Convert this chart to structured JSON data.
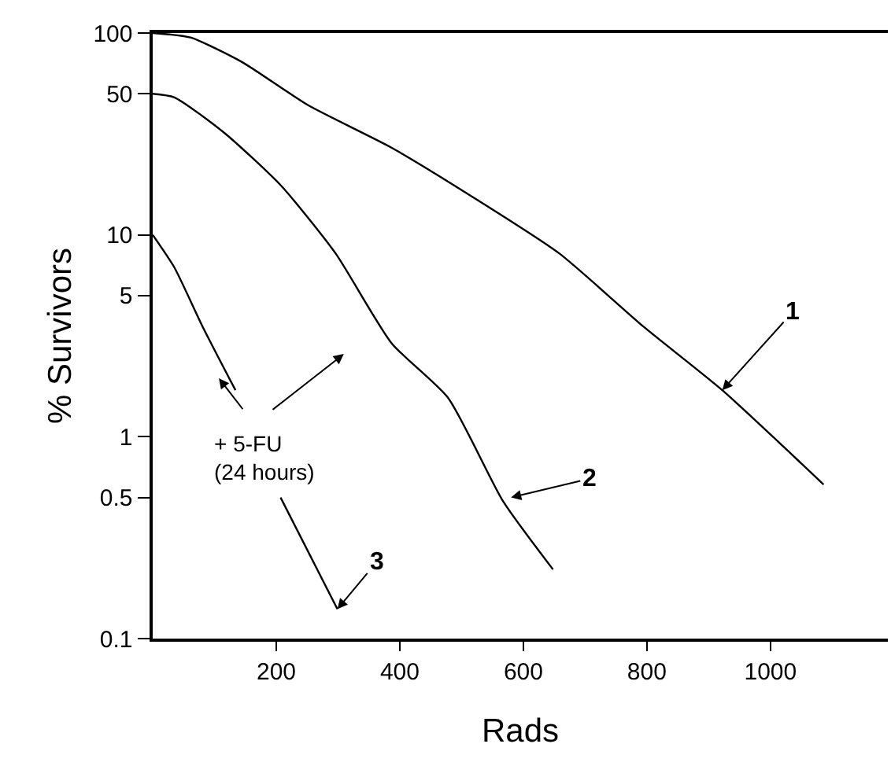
{
  "chart_data": {
    "type": "line",
    "xlabel": "Rads",
    "ylabel": "% Survivors",
    "log": "y",
    "marker": "none",
    "line_style": "solid",
    "xlim": [
      0,
      1190
    ],
    "xticks": [
      200,
      400,
      600,
      800,
      1000
    ],
    "ylim": [
      0.1,
      100
    ],
    "yticks": [
      0.1,
      0.5,
      1,
      5,
      10,
      50,
      100
    ],
    "series": [
      {
        "color": "#000000",
        "x": [
          0,
          61,
          144,
          251,
          387,
          524,
          658,
          795,
          922,
          1086
        ],
        "values": [
          100,
          95,
          72,
          44,
          27,
          15,
          8.1,
          3.5,
          1.7,
          0.58
        ]
      },
      {
        "color": "#000000",
        "x": [
          0,
          35,
          116,
          208,
          296,
          387,
          478,
          567,
          648
        ],
        "values": [
          50,
          48,
          32,
          17.5,
          8.1,
          2.9,
          1.56,
          0.48,
          0.22
        ]
      },
      {
        "color": "#000000",
        "x": [
          0,
          35,
          81,
          134,
          170,
          207,
          299
        ],
        "values": [
          10,
          6.9,
          3.5,
          1.7,
          null,
          0.5,
          0.14
        ]
      }
    ],
    "annotations": [
      {
        "text": "1",
        "x": 922,
        "y": 1.7
      },
      {
        "text": "2",
        "x": 580,
        "y": 0.5
      },
      {
        "text": "3",
        "x": 299,
        "y": 0.14
      },
      "+ 5-FU\n(24 hours)"
    ]
  }
}
